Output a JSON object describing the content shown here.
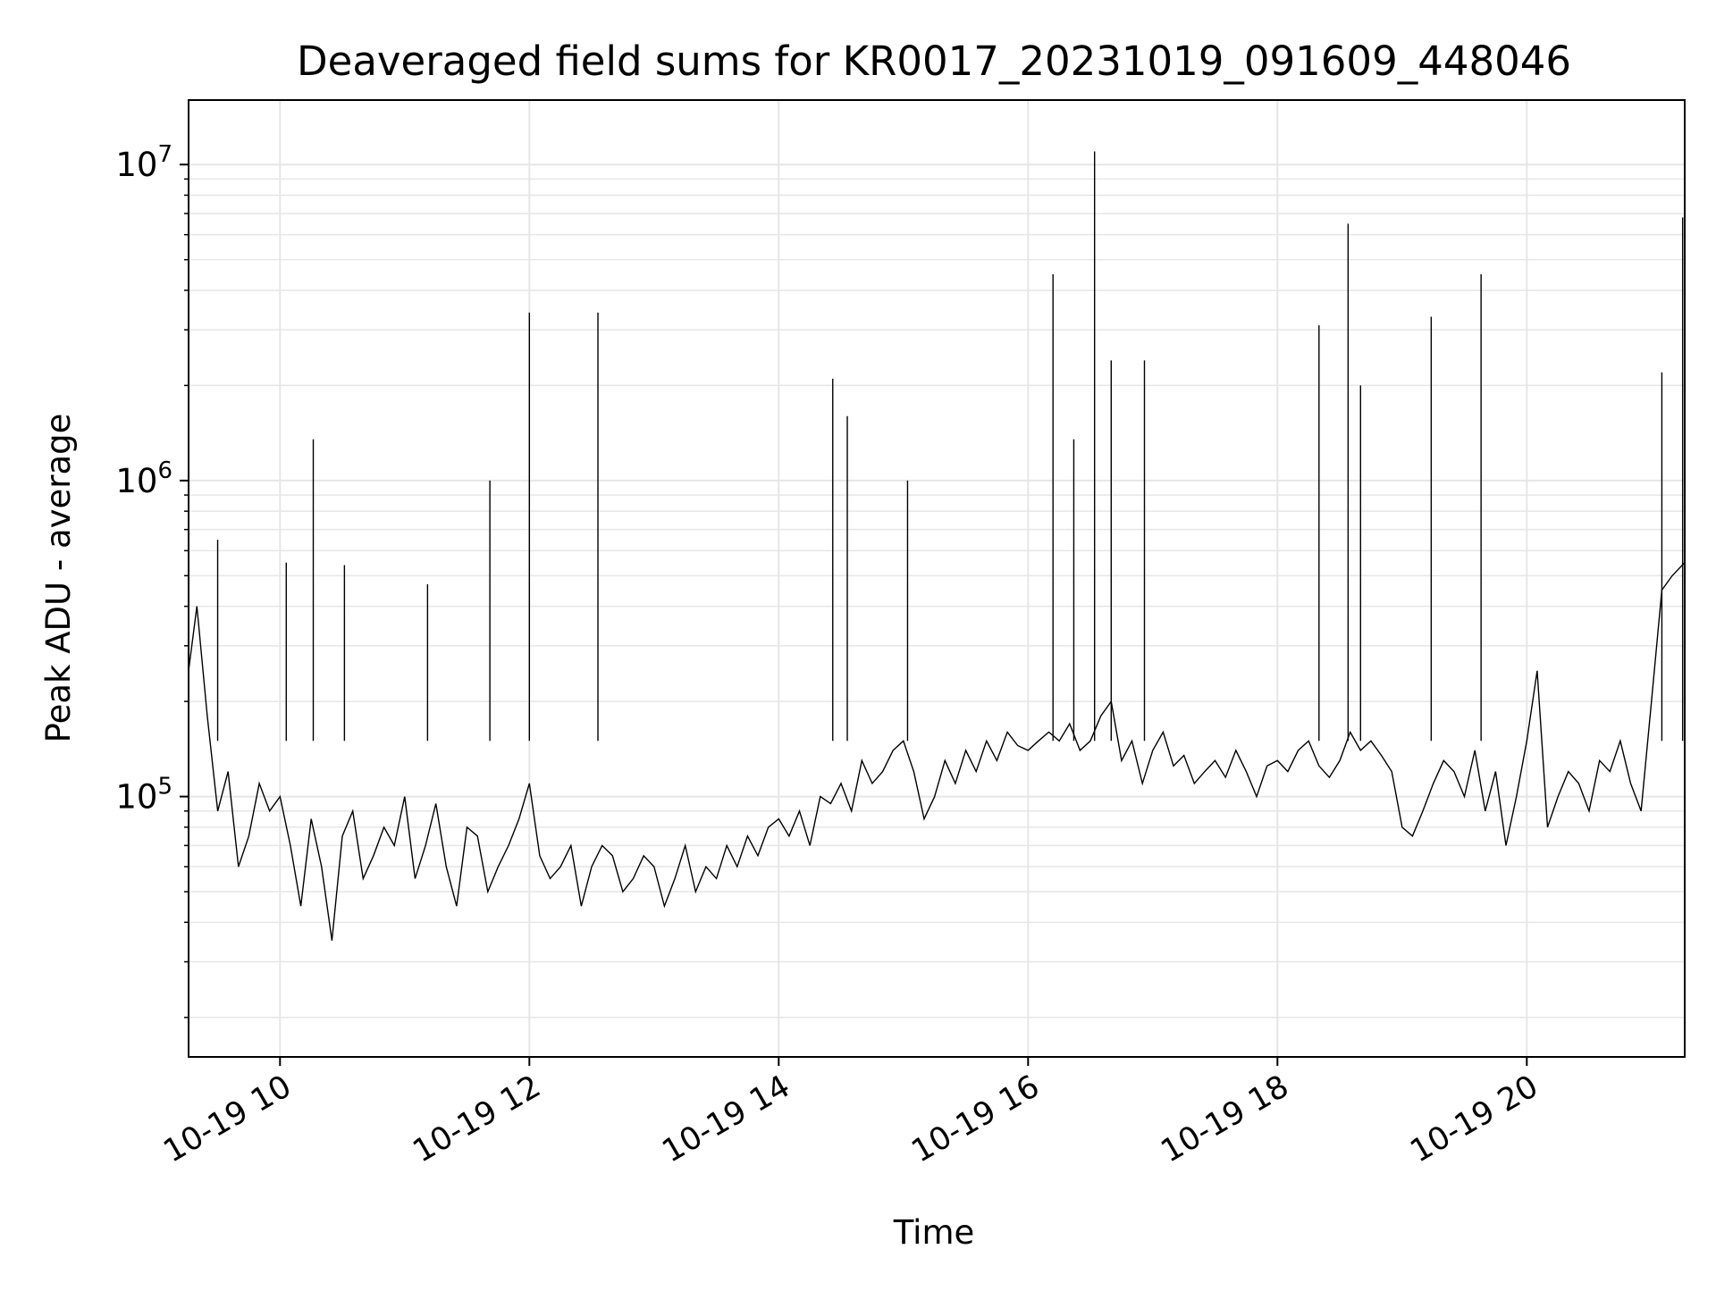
{
  "chart_data": {
    "type": "line",
    "title": "Deaveraged field sums for KR0017_20231019_091609_448046",
    "xlabel": "Time",
    "ylabel": "Peak ADU - average",
    "yscale": "log",
    "grid": true,
    "legend": "none",
    "line_color": "#000000",
    "grid_color": "#e6e6e6",
    "xlim": [
      "2023-10-19 09:16",
      "2023-10-19 21:16"
    ],
    "ylim": [
      15000,
      16000000
    ],
    "x_ticks": [
      {
        "value": "2023-10-19 10:00",
        "label": "10-19 10"
      },
      {
        "value": "2023-10-19 12:00",
        "label": "10-19 12"
      },
      {
        "value": "2023-10-19 14:00",
        "label": "10-19 14"
      },
      {
        "value": "2023-10-19 16:00",
        "label": "10-19 16"
      },
      {
        "value": "2023-10-19 18:00",
        "label": "10-19 18"
      },
      {
        "value": "2023-10-19 20:00",
        "label": "10-19 20"
      }
    ],
    "y_ticks": [
      {
        "value": 100000,
        "base": "10",
        "exp": "5"
      },
      {
        "value": 1000000,
        "base": "10",
        "exp": "6"
      },
      {
        "value": 10000000,
        "base": "10",
        "exp": "7"
      }
    ],
    "series": [
      {
        "x": [
          "2023-10-19 09:16",
          "2023-10-19 09:20",
          "2023-10-19 09:25",
          "2023-10-19 09:30",
          "2023-10-19 09:35",
          "2023-10-19 09:40",
          "2023-10-19 09:45",
          "2023-10-19 09:50",
          "2023-10-19 09:55",
          "2023-10-19 10:00",
          "2023-10-19 10:05",
          "2023-10-19 10:10",
          "2023-10-19 10:15",
          "2023-10-19 10:20",
          "2023-10-19 10:25",
          "2023-10-19 10:30",
          "2023-10-19 10:35",
          "2023-10-19 10:40",
          "2023-10-19 10:45",
          "2023-10-19 10:50",
          "2023-10-19 10:55",
          "2023-10-19 11:00",
          "2023-10-19 11:05",
          "2023-10-19 11:10",
          "2023-10-19 11:15",
          "2023-10-19 11:20",
          "2023-10-19 11:25",
          "2023-10-19 11:30",
          "2023-10-19 11:35",
          "2023-10-19 11:40",
          "2023-10-19 11:45",
          "2023-10-19 11:50",
          "2023-10-19 11:55",
          "2023-10-19 12:00",
          "2023-10-19 12:05",
          "2023-10-19 12:10",
          "2023-10-19 12:15",
          "2023-10-19 12:20",
          "2023-10-19 12:25",
          "2023-10-19 12:30",
          "2023-10-19 12:35",
          "2023-10-19 12:40",
          "2023-10-19 12:45",
          "2023-10-19 12:50",
          "2023-10-19 12:55",
          "2023-10-19 13:00",
          "2023-10-19 13:05",
          "2023-10-19 13:10",
          "2023-10-19 13:15",
          "2023-10-19 13:20",
          "2023-10-19 13:25",
          "2023-10-19 13:30",
          "2023-10-19 13:35",
          "2023-10-19 13:40",
          "2023-10-19 13:45",
          "2023-10-19 13:50",
          "2023-10-19 13:55",
          "2023-10-19 14:00",
          "2023-10-19 14:05",
          "2023-10-19 14:10",
          "2023-10-19 14:15",
          "2023-10-19 14:20",
          "2023-10-19 14:25",
          "2023-10-19 14:30",
          "2023-10-19 14:35",
          "2023-10-19 14:40",
          "2023-10-19 14:45",
          "2023-10-19 14:50",
          "2023-10-19 14:55",
          "2023-10-19 15:00",
          "2023-10-19 15:05",
          "2023-10-19 15:10",
          "2023-10-19 15:15",
          "2023-10-19 15:20",
          "2023-10-19 15:25",
          "2023-10-19 15:30",
          "2023-10-19 15:35",
          "2023-10-19 15:40",
          "2023-10-19 15:45",
          "2023-10-19 15:50",
          "2023-10-19 15:55",
          "2023-10-19 16:00",
          "2023-10-19 16:05",
          "2023-10-19 16:10",
          "2023-10-19 16:15",
          "2023-10-19 16:20",
          "2023-10-19 16:25",
          "2023-10-19 16:30",
          "2023-10-19 16:35",
          "2023-10-19 16:40",
          "2023-10-19 16:45",
          "2023-10-19 16:50",
          "2023-10-19 16:55",
          "2023-10-19 17:00",
          "2023-10-19 17:05",
          "2023-10-19 17:10",
          "2023-10-19 17:15",
          "2023-10-19 17:20",
          "2023-10-19 17:25",
          "2023-10-19 17:30",
          "2023-10-19 17:35",
          "2023-10-19 17:40",
          "2023-10-19 17:45",
          "2023-10-19 17:50",
          "2023-10-19 17:55",
          "2023-10-19 18:00",
          "2023-10-19 18:05",
          "2023-10-19 18:10",
          "2023-10-19 18:15",
          "2023-10-19 18:20",
          "2023-10-19 18:25",
          "2023-10-19 18:30",
          "2023-10-19 18:35",
          "2023-10-19 18:40",
          "2023-10-19 18:45",
          "2023-10-19 18:50",
          "2023-10-19 18:55",
          "2023-10-19 19:00",
          "2023-10-19 19:05",
          "2023-10-19 19:10",
          "2023-10-19 19:15",
          "2023-10-19 19:20",
          "2023-10-19 19:25",
          "2023-10-19 19:30",
          "2023-10-19 19:35",
          "2023-10-19 19:40",
          "2023-10-19 19:45",
          "2023-10-19 19:50",
          "2023-10-19 19:55",
          "2023-10-19 20:00",
          "2023-10-19 20:05",
          "2023-10-19 20:10",
          "2023-10-19 20:15",
          "2023-10-19 20:20",
          "2023-10-19 20:25",
          "2023-10-19 20:30",
          "2023-10-19 20:35",
          "2023-10-19 20:40",
          "2023-10-19 20:45",
          "2023-10-19 20:50",
          "2023-10-19 20:55",
          "2023-10-19 21:00",
          "2023-10-19 21:05",
          "2023-10-19 21:10",
          "2023-10-19 21:16"
        ],
        "y": [
          250000,
          400000,
          180000,
          90000,
          120000,
          60000,
          75000,
          110000,
          90000,
          100000,
          70000,
          45000,
          85000,
          60000,
          35000,
          75000,
          90000,
          55000,
          65000,
          80000,
          70000,
          100000,
          55000,
          70000,
          95000,
          60000,
          45000,
          80000,
          75000,
          50000,
          60000,
          70000,
          85000,
          110000,
          65000,
          55000,
          60000,
          70000,
          45000,
          60000,
          70000,
          65000,
          50000,
          55000,
          65000,
          60000,
          45000,
          55000,
          70000,
          50000,
          60000,
          55000,
          70000,
          60000,
          75000,
          65000,
          80000,
          85000,
          75000,
          90000,
          70000,
          100000,
          95000,
          110000,
          90000,
          130000,
          110000,
          120000,
          140000,
          150000,
          120000,
          85000,
          100000,
          130000,
          110000,
          140000,
          120000,
          150000,
          130000,
          160000,
          145000,
          140000,
          150000,
          160000,
          150000,
          170000,
          140000,
          150000,
          180000,
          200000,
          130000,
          150000,
          110000,
          140000,
          160000,
          125000,
          135000,
          110000,
          120000,
          130000,
          115000,
          140000,
          120000,
          100000,
          125000,
          130000,
          120000,
          140000,
          150000,
          125000,
          115000,
          130000,
          160000,
          140000,
          150000,
          135000,
          120000,
          80000,
          75000,
          90000,
          110000,
          130000,
          120000,
          100000,
          140000,
          90000,
          120000,
          70000,
          100000,
          150000,
          250000,
          80000,
          100000,
          120000,
          110000,
          90000,
          130000,
          120000,
          150000,
          110000,
          90000,
          200000,
          450000,
          500000,
          550000
        ]
      },
      {
        "x": [
          "2023-10-19 09:30",
          "2023-10-19 10:03",
          "2023-10-19 10:16",
          "2023-10-19 10:31",
          "2023-10-19 11:11",
          "2023-10-19 11:41",
          "2023-10-19 12:00",
          "2023-10-19 12:33",
          "2023-10-19 14:26",
          "2023-10-19 14:33",
          "2023-10-19 15:02",
          "2023-10-19 16:12",
          "2023-10-19 16:22",
          "2023-10-19 16:32",
          "2023-10-19 16:40",
          "2023-10-19 16:56",
          "2023-10-19 18:20",
          "2023-10-19 18:34",
          "2023-10-19 18:40",
          "2023-10-19 19:14",
          "2023-10-19 19:38",
          "2023-10-19 21:05",
          "2023-10-19 21:15"
        ],
        "y": [
          650000,
          550000,
          1350000,
          540000,
          470000,
          1000000,
          3400000,
          3400000,
          2100000,
          1600000,
          1000000,
          4500000,
          1350000,
          11000000,
          2400000,
          2400000,
          3100000,
          6500000,
          2000000,
          3300000,
          4500000,
          2200000,
          6800000
        ]
      }
    ]
  }
}
